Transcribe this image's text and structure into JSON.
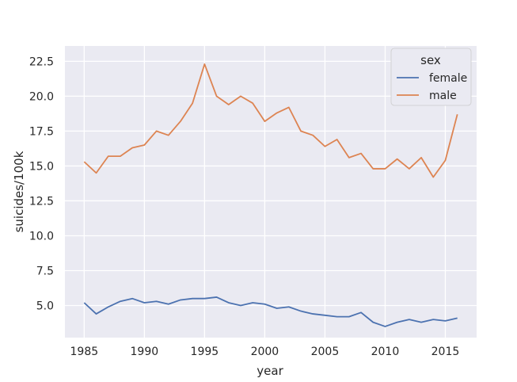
{
  "chart_data": {
    "type": "line",
    "title": "",
    "xlabel": "year",
    "ylabel": "suicides/100k",
    "xlim": [
      1983.4,
      2017.6
    ],
    "ylim": [
      2.7,
      23.6
    ],
    "xticks": [
      1985,
      1990,
      1995,
      2000,
      2005,
      2010,
      2015
    ],
    "yticks": [
      5.0,
      7.5,
      10.0,
      12.5,
      15.0,
      17.5,
      20.0,
      22.5
    ],
    "xtick_labels": [
      "1985",
      "1990",
      "1995",
      "2000",
      "2005",
      "2010",
      "2015"
    ],
    "ytick_labels": [
      "5.0",
      "7.5",
      "10.0",
      "12.5",
      "15.0",
      "17.5",
      "20.0",
      "22.5"
    ],
    "grid": true,
    "legend": {
      "title": "sex",
      "placement": "top-right"
    },
    "x": [
      1985,
      1986,
      1987,
      1988,
      1989,
      1990,
      1991,
      1992,
      1993,
      1994,
      1995,
      1996,
      1997,
      1998,
      1999,
      2000,
      2001,
      2002,
      2003,
      2004,
      2005,
      2006,
      2007,
      2008,
      2009,
      2010,
      2011,
      2012,
      2013,
      2014,
      2015,
      2016
    ],
    "series": [
      {
        "name": "female",
        "color": "#4c72b0",
        "values": [
          5.2,
          4.4,
          4.9,
          5.3,
          5.5,
          5.2,
          5.3,
          5.1,
          5.4,
          5.5,
          5.5,
          5.6,
          5.2,
          5.0,
          5.2,
          5.1,
          4.8,
          4.9,
          4.6,
          4.4,
          4.3,
          4.2,
          4.2,
          4.5,
          3.8,
          3.5,
          3.8,
          4.0,
          3.8,
          4.0,
          3.9,
          4.1
        ]
      },
      {
        "name": "male",
        "color": "#dd8452",
        "values": [
          15.3,
          14.5,
          15.7,
          15.7,
          16.3,
          16.5,
          17.5,
          17.2,
          18.2,
          19.5,
          22.3,
          20.0,
          19.4,
          20.0,
          19.5,
          18.2,
          18.8,
          19.2,
          17.5,
          17.2,
          16.4,
          16.9,
          15.6,
          15.9,
          14.8,
          14.8,
          15.5,
          14.8,
          15.6,
          14.2,
          15.4,
          18.7
        ]
      }
    ]
  }
}
